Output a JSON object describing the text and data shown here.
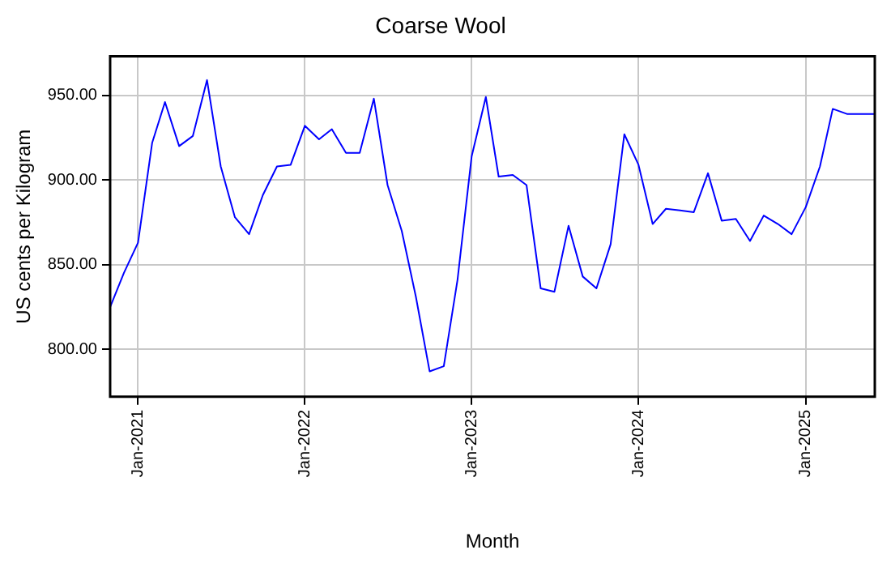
{
  "chart_data": {
    "type": "line",
    "title": "Coarse Wool",
    "xlabel": "Month",
    "ylabel": "US cents per Kilogram",
    "x": [
      "2020-11",
      "2020-12",
      "2021-01",
      "2021-02",
      "2021-03",
      "2021-04",
      "2021-05",
      "2021-06",
      "2021-07",
      "2021-08",
      "2021-09",
      "2021-10",
      "2021-11",
      "2021-12",
      "2022-01",
      "2022-02",
      "2022-03",
      "2022-04",
      "2022-05",
      "2022-06",
      "2022-07",
      "2022-08",
      "2022-09",
      "2022-10",
      "2022-11",
      "2022-12",
      "2023-01",
      "2023-02",
      "2023-03",
      "2023-04",
      "2023-05",
      "2023-06",
      "2023-07",
      "2023-08",
      "2023-09",
      "2023-10",
      "2023-11",
      "2023-12",
      "2024-01",
      "2024-02",
      "2024-03",
      "2024-04",
      "2024-05",
      "2024-06",
      "2024-07",
      "2024-08",
      "2024-09",
      "2024-10",
      "2024-11",
      "2024-12",
      "2025-01",
      "2025-02",
      "2025-03",
      "2025-04",
      "2025-05",
      "2025-06"
    ],
    "series": [
      {
        "color": "#0000ff",
        "values": [
          825,
          845,
          863,
          922,
          946,
          920,
          926,
          959,
          908,
          878,
          868,
          891,
          908,
          909,
          932,
          924,
          930,
          916,
          916,
          948,
          897,
          870,
          831,
          787,
          790,
          841,
          914,
          949,
          902,
          903,
          897,
          836,
          834,
          873,
          843,
          836,
          862,
          927,
          909,
          874,
          883,
          882,
          881,
          904,
          876,
          877,
          864,
          879,
          874,
          868,
          884,
          908,
          942,
          939,
          939,
          939
        ]
      }
    ],
    "xlim": [
      "2020-11",
      "2025-06"
    ],
    "xticks": [
      {
        "value": "2021-01",
        "label": "Jan-2021"
      },
      {
        "value": "2022-01",
        "label": "Jan-2022"
      },
      {
        "value": "2023-01",
        "label": "Jan-2023"
      },
      {
        "value": "2024-01",
        "label": "Jan-2024"
      },
      {
        "value": "2025-01",
        "label": "Jan-2025"
      }
    ],
    "ylim": [
      772,
      973
    ],
    "yticks": [
      {
        "value": 800,
        "label": "800.00"
      },
      {
        "value": 850,
        "label": "850.00"
      },
      {
        "value": 900,
        "label": "900.00"
      },
      {
        "value": 950,
        "label": "950.00"
      }
    ],
    "grid": true,
    "legend": false,
    "marker": "none",
    "line_style": "solid"
  }
}
